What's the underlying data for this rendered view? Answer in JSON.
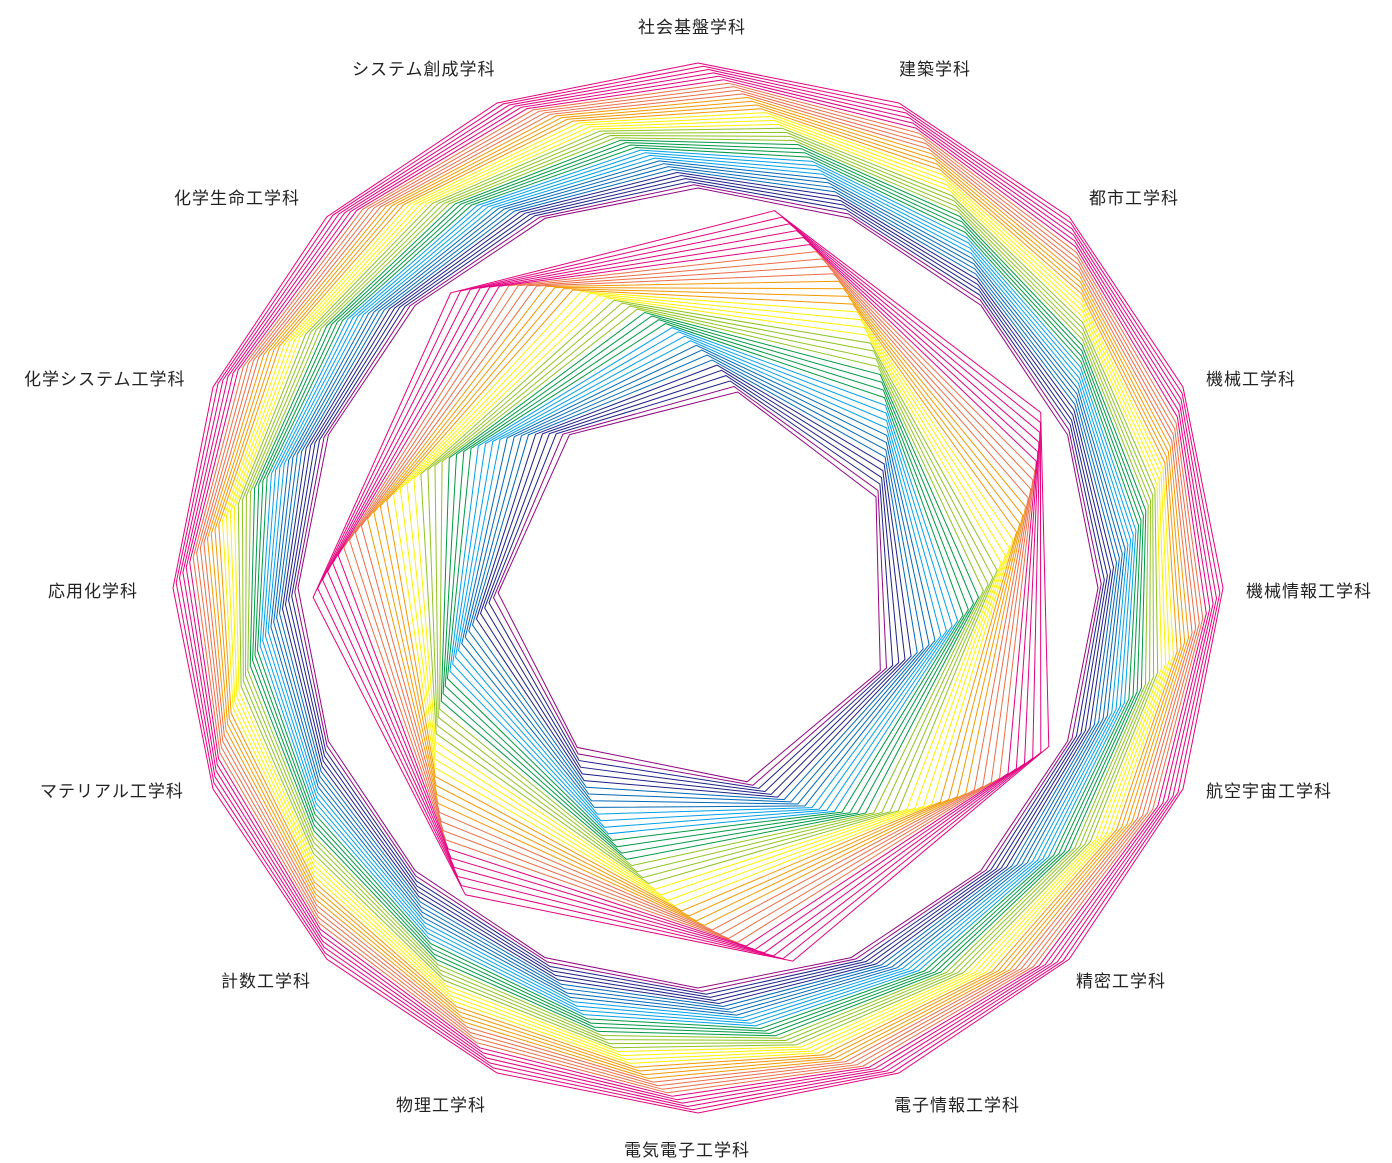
{
  "departments": [
    "社会基盤学科",
    "建築学科",
    "都市工学科",
    "機械工学科",
    "機械情報工学科",
    "航空宇宙工学科",
    "精密工学科",
    "電子情報工学科",
    "電気電子工学科",
    "物理工学科",
    "計数工学科",
    "マテリアル工学科",
    "応用化学科",
    "化学システム工学科",
    "化学生命工学科",
    "システム創成学科"
  ],
  "palette": [
    "#e6007e",
    "#e4007f",
    "#ec6d46",
    "#f39800",
    "#fff100",
    "#8fc31f",
    "#009944",
    "#00a0e9",
    "#0068b7",
    "#1d2088",
    "#920783"
  ]
}
